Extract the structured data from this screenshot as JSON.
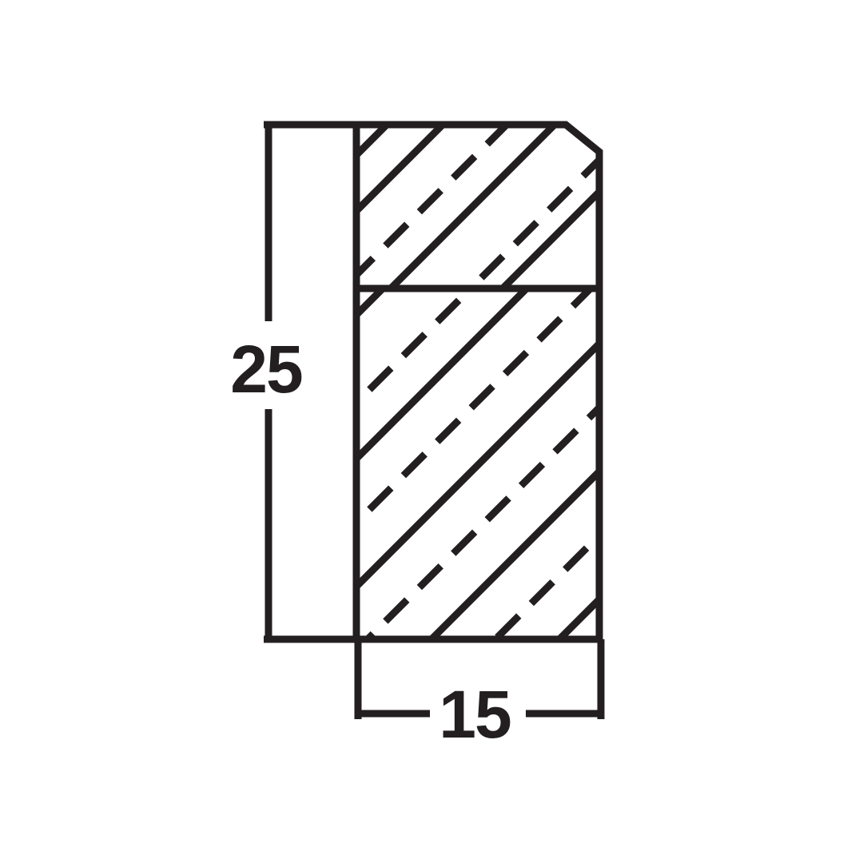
{
  "drawing": {
    "stroke_color": "#231f20",
    "background_color": "#ffffff",
    "dimensions": {
      "height_label": "25",
      "width_label": "15"
    }
  }
}
